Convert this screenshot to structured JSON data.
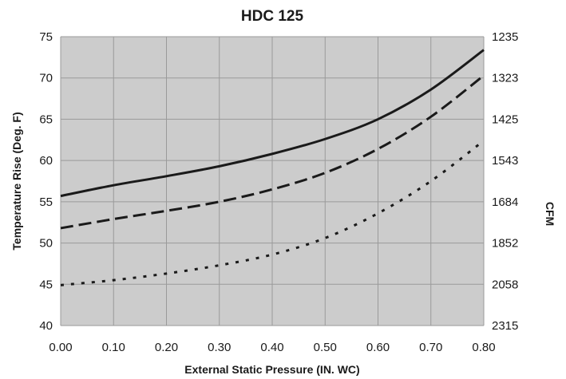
{
  "chart_data": {
    "type": "line",
    "title": "HDC 125",
    "xlabel": "External Static Pressure (IN. WC)",
    "ylabel": "Temperature Rise (Deg. F)",
    "y2label": "CFM",
    "xlim": [
      0,
      0.8
    ],
    "ylim": [
      40,
      75
    ],
    "x_ticks": [
      "0.00",
      "0.10",
      "0.20",
      "0.30",
      "0.40",
      "0.50",
      "0.60",
      "0.70",
      "0.80"
    ],
    "y_ticks": [
      "40",
      "45",
      "50",
      "55",
      "60",
      "65",
      "70",
      "75"
    ],
    "y2_ticks": [
      "2315",
      "2058",
      "1852",
      "1684",
      "1543",
      "1425",
      "1323",
      "1235"
    ],
    "grid": true,
    "background_color": "#cccccc",
    "series": [
      {
        "style": "solid",
        "color": "#1a1a1a",
        "x": [
          0,
          0.1,
          0.2,
          0.3,
          0.4,
          0.5,
          0.6,
          0.7,
          0.8
        ],
        "y": [
          55.7,
          57.0,
          58.1,
          59.3,
          60.8,
          62.6,
          65.0,
          68.6,
          73.4
        ]
      },
      {
        "style": "dashed",
        "color": "#1a1a1a",
        "x": [
          0,
          0.1,
          0.2,
          0.3,
          0.4,
          0.5,
          0.6,
          0.7,
          0.8
        ],
        "y": [
          51.8,
          52.9,
          53.9,
          55.0,
          56.5,
          58.5,
          61.4,
          65.3,
          70.3
        ]
      },
      {
        "style": "dotted",
        "color": "#1a1a1a",
        "x": [
          0,
          0.1,
          0.2,
          0.3,
          0.4,
          0.5,
          0.6,
          0.7,
          0.8
        ],
        "y": [
          44.9,
          45.5,
          46.3,
          47.3,
          48.6,
          50.6,
          53.6,
          57.5,
          62.4
        ]
      }
    ]
  }
}
